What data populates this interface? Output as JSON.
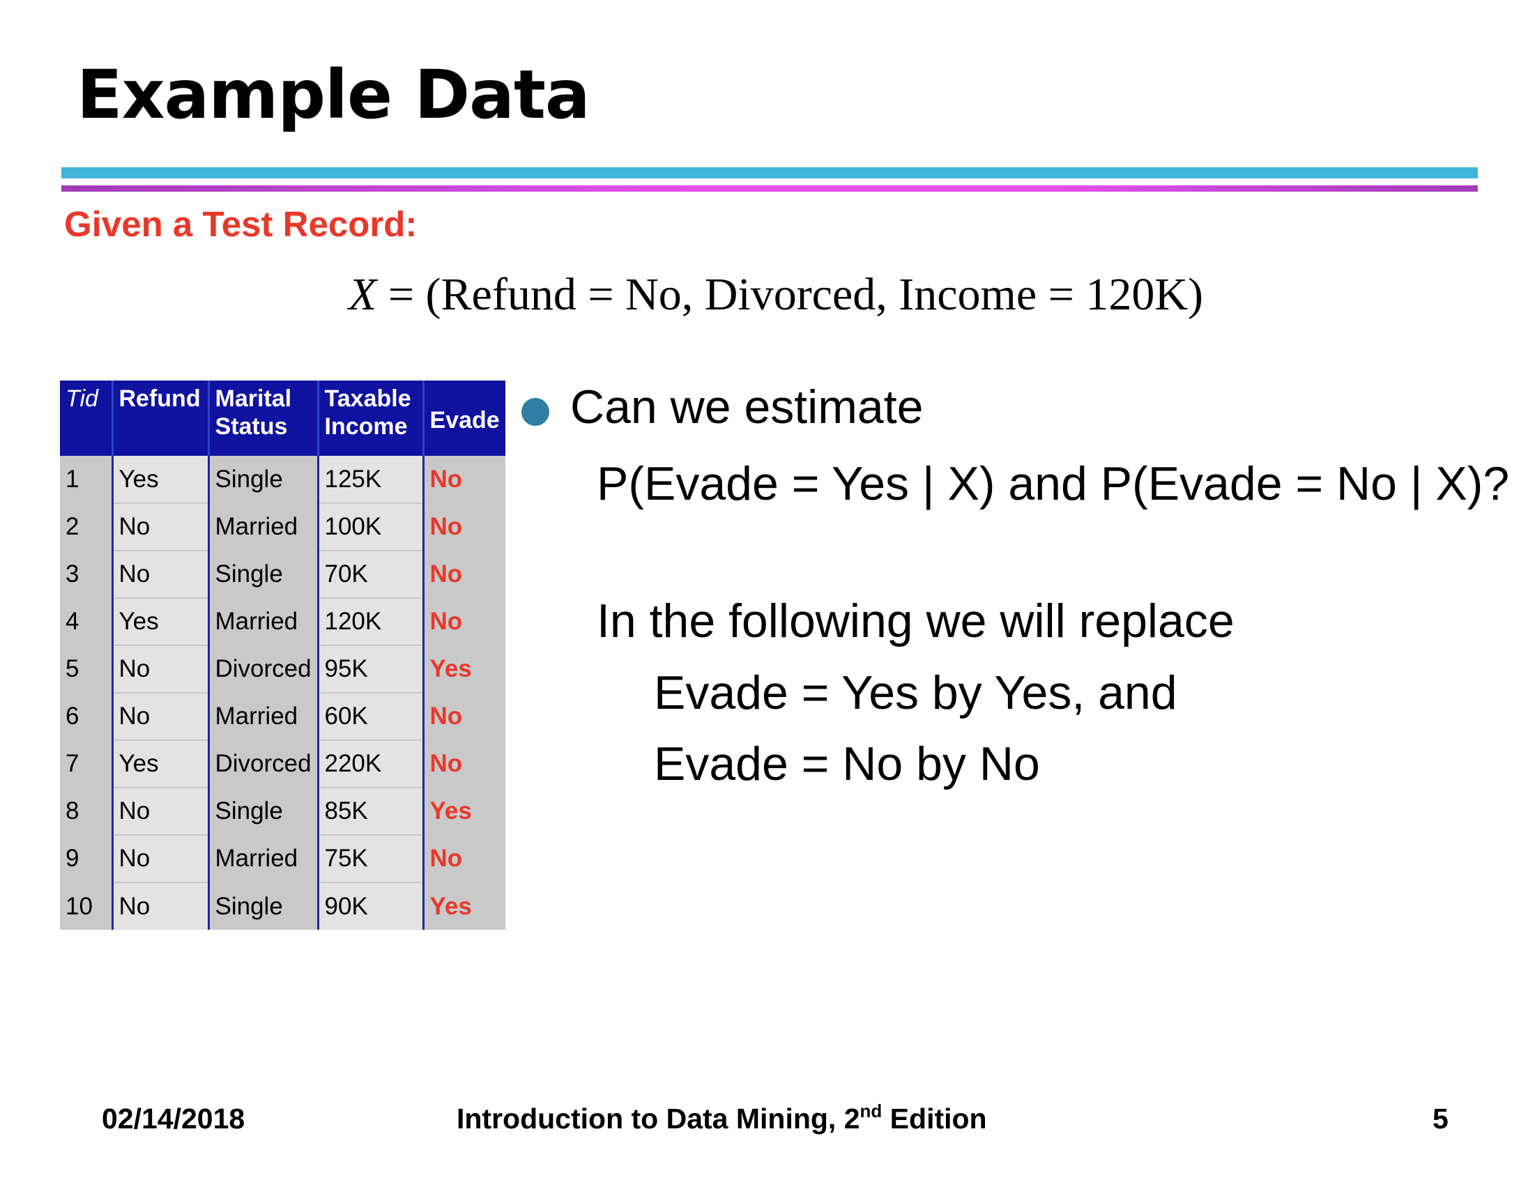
{
  "slide": {
    "title": "Example Data",
    "subtitle": "Given a Test Record:",
    "formula": {
      "var": "X",
      "rest": " = (Refund = No, Divorced, Income = 120K)"
    }
  },
  "table": {
    "headers": {
      "tid": "Tid",
      "refund": "Refund",
      "marital_1": "Marital",
      "marital_2": "Status",
      "income_1": "Taxable",
      "income_2": "Income",
      "evade": "Evade"
    },
    "rows": [
      {
        "tid": "1",
        "refund": "Yes",
        "marital": "Single",
        "income": "125K",
        "evade": "No"
      },
      {
        "tid": "2",
        "refund": "No",
        "marital": "Married",
        "income": "100K",
        "evade": "No"
      },
      {
        "tid": "3",
        "refund": "No",
        "marital": "Single",
        "income": "70K",
        "evade": "No"
      },
      {
        "tid": "4",
        "refund": "Yes",
        "marital": "Married",
        "income": "120K",
        "evade": "No"
      },
      {
        "tid": "5",
        "refund": "No",
        "marital": "Divorced",
        "income": "95K",
        "evade": "Yes"
      },
      {
        "tid": "6",
        "refund": "No",
        "marital": "Married",
        "income": "60K",
        "evade": "No"
      },
      {
        "tid": "7",
        "refund": "Yes",
        "marital": "Divorced",
        "income": "220K",
        "evade": "No"
      },
      {
        "tid": "8",
        "refund": "No",
        "marital": "Single",
        "income": "85K",
        "evade": "Yes"
      },
      {
        "tid": "9",
        "refund": "No",
        "marital": "Married",
        "income": "75K",
        "evade": "No"
      },
      {
        "tid": "10",
        "refund": "No",
        "marital": "Single",
        "income": "90K",
        "evade": "Yes"
      }
    ]
  },
  "content": {
    "question_line1": "Can we estimate",
    "question_line2": "P(Evade = Yes | X) and P(Evade = No | X)?",
    "replace_line1": "In the following we will replace",
    "replace_line2": "Evade = Yes by Yes, and",
    "replace_line3": "Evade = No by No"
  },
  "footer": {
    "date": "02/14/2018",
    "book_title": "Introduction to Data Mining, 2",
    "book_sup": "nd",
    "book_tail": " Edition",
    "page": "5"
  },
  "colors": {
    "title_accent_red": "#e8382a",
    "header_blue": "#0f139f",
    "rule_blue": "#3fb3dc",
    "rule_purple": "#e54ff0",
    "bullet_blue": "#2f7ea4"
  }
}
